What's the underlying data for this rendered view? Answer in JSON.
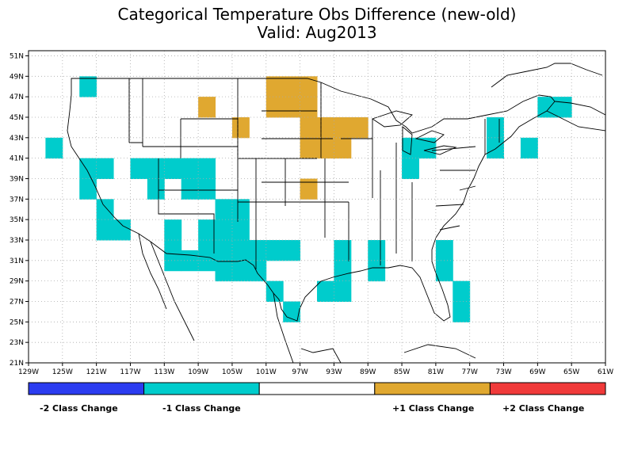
{
  "title": "Categorical Temperature Obs Difference (new-old)",
  "subtitle": "Valid: Aug2013",
  "x_ticks": [
    "129W",
    "125W",
    "121W",
    "117W",
    "113W",
    "109W",
    "105W",
    "101W",
    "97W",
    "93W",
    "89W",
    "85W",
    "81W",
    "77W",
    "73W",
    "69W",
    "65W",
    "61W"
  ],
  "y_ticks": [
    "21N",
    "23N",
    "25N",
    "27N",
    "29N",
    "31N",
    "33N",
    "35N",
    "37N",
    "39N",
    "41N",
    "43N",
    "45N",
    "47N",
    "49N",
    "51N"
  ],
  "colors": {
    "minus2": "#2b3cf0",
    "minus1": "#00cccc",
    "zero": "#ffffff",
    "plus1": "#e0a830",
    "plus2": "#f03a3a"
  },
  "legend": [
    {
      "label": "-2 Class Change",
      "color": "#2b3cf0"
    },
    {
      "label": "-1 Class Change",
      "color": "#00cccc"
    },
    {
      "label": "",
      "color": "#ffffff"
    },
    {
      "label": "+1 Class Change",
      "color": "#e0a830"
    },
    {
      "label": "+2 Class Change",
      "color": "#f03a3a"
    }
  ],
  "map_data": {
    "grid_resolution_deg": 2,
    "cells_minus1": [
      [
        -122,
        48
      ],
      [
        -126,
        42
      ],
      [
        -122,
        40
      ],
      [
        -120,
        40
      ],
      [
        -122,
        38
      ],
      [
        -116,
        40
      ],
      [
        -114,
        40
      ],
      [
        -112,
        40
      ],
      [
        -110,
        40
      ],
      [
        -108,
        40
      ],
      [
        -114,
        38
      ],
      [
        -110,
        38
      ],
      [
        -108,
        38
      ],
      [
        -120,
        36
      ],
      [
        -120,
        34
      ],
      [
        -118,
        34
      ],
      [
        -112,
        34
      ],
      [
        -108,
        34
      ],
      [
        -112,
        32
      ],
      [
        -108,
        32
      ],
      [
        -112,
        31
      ],
      [
        -110,
        31
      ],
      [
        -108,
        31
      ],
      [
        -106,
        36
      ],
      [
        -104,
        36
      ],
      [
        -106,
        34
      ],
      [
        -104,
        34
      ],
      [
        -106,
        32
      ],
      [
        -104,
        32
      ],
      [
        -102,
        32
      ],
      [
        -100,
        32
      ],
      [
        -98,
        32
      ],
      [
        -106,
        30
      ],
      [
        -104,
        30
      ],
      [
        -102,
        30
      ],
      [
        -100,
        28
      ],
      [
        -94,
        28
      ],
      [
        -92,
        28
      ],
      [
        -98,
        26
      ],
      [
        -92,
        30
      ],
      [
        -92,
        32
      ],
      [
        -88,
        32
      ],
      [
        -88,
        30
      ],
      [
        -84,
        42
      ],
      [
        -82,
        42
      ],
      [
        -84,
        40
      ],
      [
        -80,
        32
      ],
      [
        -80,
        30
      ],
      [
        -78,
        28
      ],
      [
        -78,
        26
      ],
      [
        -74,
        44
      ],
      [
        -74,
        42
      ],
      [
        -70,
        42
      ],
      [
        -68,
        46
      ],
      [
        -66,
        46
      ]
    ],
    "cells_plus1": [
      [
        -108,
        46
      ],
      [
        -104,
        44
      ],
      [
        -100,
        48
      ],
      [
        -98,
        48
      ],
      [
        -96,
        48
      ],
      [
        -100,
        46
      ],
      [
        -98,
        46
      ],
      [
        -96,
        46
      ],
      [
        -96,
        44
      ],
      [
        -94,
        44
      ],
      [
        -92,
        44
      ],
      [
        -90,
        44
      ],
      [
        -96,
        42
      ],
      [
        -94,
        42
      ],
      [
        -92,
        42
      ],
      [
        -96,
        38
      ]
    ]
  }
}
